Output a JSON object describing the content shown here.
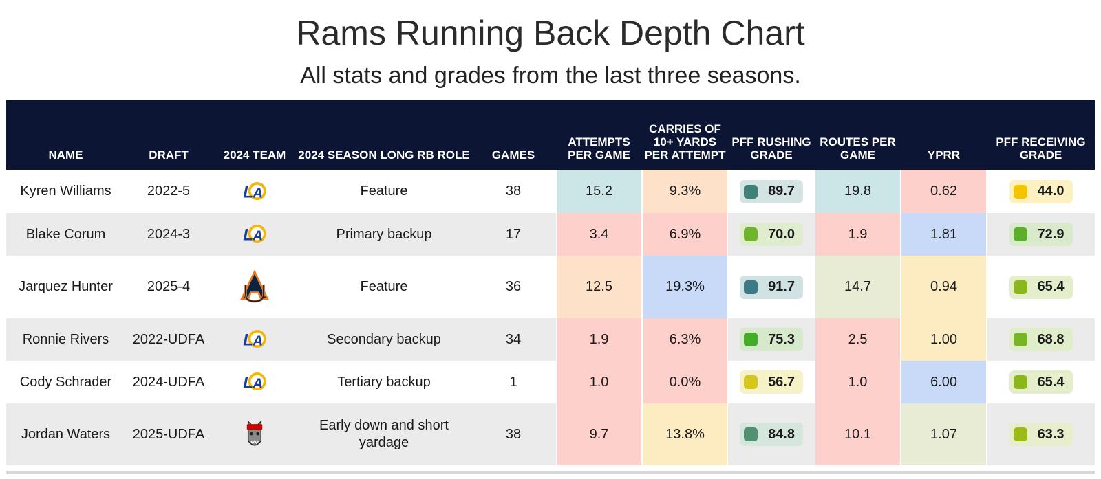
{
  "title": "Rams Running Back Depth Chart",
  "subtitle": "All stats and grades from the last three seasons.",
  "colors": {
    "header_bg": "#0d1535",
    "row_alt": "#ebebeb"
  },
  "chart_data": {
    "type": "table",
    "columns": [
      "NAME",
      "DRAFT",
      "2024 TEAM",
      "2024 SEASON LONG RB ROLE",
      "GAMES",
      "ATTEMPTS PER GAME",
      "CARRIES OF 10+ YARDS PER ATTEMPT",
      "PFF RUSHING GRADE",
      "ROUTES PER GAME",
      "YPRR",
      "PFF RECEIVING GRADE"
    ],
    "rows": [
      {
        "name": "Kyren Williams",
        "draft": "2022-5",
        "team": "rams-logo",
        "role": "Feature",
        "games": "38",
        "att": "15.2",
        "att_bg": "#cce6e8",
        "carries": "9.3%",
        "carries_bg": "#fde1c8",
        "rush": "89.7",
        "rush_sq": "#3f8079",
        "rush_bg": "#d3e4e2",
        "routes": "19.8",
        "routes_bg": "#cce6e8",
        "yprr": "0.62",
        "yprr_bg": "#fdd0cb",
        "recv": "44.0",
        "recv_sq": "#f5c400",
        "recv_bg": "#fdf1c2"
      },
      {
        "name": "Blake Corum",
        "draft": "2024-3",
        "team": "rams-logo",
        "role": "Primary backup",
        "games": "17",
        "att": "3.4",
        "att_bg": "#fdd0cb",
        "carries": "6.9%",
        "carries_bg": "#fdd0cb",
        "rush": "70.0",
        "rush_sq": "#6eb52b",
        "rush_bg": "#dfeccd",
        "routes": "1.9",
        "routes_bg": "#fdd0cb",
        "yprr": "1.81",
        "yprr_bg": "#c9daf8",
        "recv": "72.9",
        "recv_sq": "#5ab028",
        "recv_bg": "#d8eacb"
      },
      {
        "name": "Jarquez Hunter",
        "draft": "2025-4",
        "team": "auburn-logo",
        "role": "Feature",
        "games": "36",
        "att": "12.5",
        "att_bg": "#fde1c8",
        "carries": "19.3%",
        "carries_bg": "#c9daf8",
        "rush": "91.7",
        "rush_sq": "#3e7a86",
        "rush_bg": "#d1e2e4",
        "routes": "14.7",
        "routes_bg": "#e8ecd5",
        "yprr": "0.94",
        "yprr_bg": "#fdecc2",
        "recv": "65.4",
        "recv_sq": "#8ab81c",
        "recv_bg": "#e5eecb"
      },
      {
        "name": "Ronnie Rivers",
        "draft": "2022-UDFA",
        "team": "rams-logo",
        "role": "Secondary backup",
        "games": "34",
        "att": "1.9",
        "att_bg": "#fdd0cb",
        "carries": "6.3%",
        "carries_bg": "#fdd0cb",
        "rush": "75.3",
        "rush_sq": "#43ad28",
        "rush_bg": "#d6eacb",
        "routes": "2.5",
        "routes_bg": "#fdd0cb",
        "yprr": "1.00",
        "yprr_bg": "#fdecc2",
        "recv": "68.8",
        "recv_sq": "#78b424",
        "recv_bg": "#e0edcb"
      },
      {
        "name": "Cody Schrader",
        "draft": "2024-UDFA",
        "team": "rams-logo",
        "role": "Tertiary backup",
        "games": "1",
        "att": "1.0",
        "att_bg": "#fdd0cb",
        "carries": "0.0%",
        "carries_bg": "#fdd0cb",
        "rush": "56.7",
        "rush_sq": "#d6c81a",
        "rush_bg": "#f5f2c8",
        "routes": "1.0",
        "routes_bg": "#fdd0cb",
        "yprr": "6.00",
        "yprr_bg": "#c9daf8",
        "recv": "65.4",
        "recv_sq": "#8ab81c",
        "recv_bg": "#e5eecb"
      },
      {
        "name": "Jordan Waters",
        "draft": "2025-UDFA",
        "team": "ncstate-logo",
        "role": "Early down and short yardage",
        "games": "38",
        "att": "9.7",
        "att_bg": "#fdd0cb",
        "carries": "13.8%",
        "carries_bg": "#fdecc2",
        "rush": "84.8",
        "rush_sq": "#4f9170",
        "rush_bg": "#d5e6dd",
        "routes": "10.1",
        "routes_bg": "#fdd0cb",
        "yprr": "1.07",
        "yprr_bg": "#e8ecd5",
        "recv": "63.3",
        "recv_sq": "#9cba18",
        "recv_bg": "#e8eecb"
      }
    ]
  }
}
